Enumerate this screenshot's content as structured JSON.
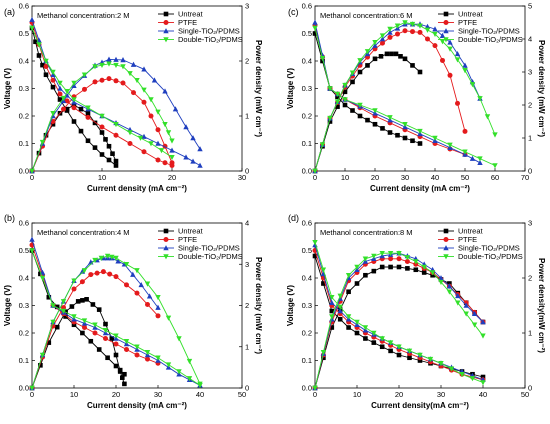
{
  "chart_data": [
    {
      "panel": "(a)",
      "type": "line",
      "annotation": "Methanol concentration:2 M",
      "xlabel": "Current density (mA cm⁻²)",
      "ylabel": "Voltage (V)",
      "y2label": "Power density (mW cm⁻²)",
      "xlim": [
        0,
        30
      ],
      "ylim": [
        0,
        0.6
      ],
      "y2lim": [
        0,
        3
      ],
      "xticks": [
        "0",
        "10",
        "20",
        "30"
      ],
      "yticks": [
        "0.0",
        "0.1",
        "0.2",
        "0.3",
        "0.4",
        "0.5",
        "0.6"
      ],
      "y2ticks": [
        "0",
        "1",
        "2",
        "3"
      ],
      "series": [
        {
          "name": "Untreat",
          "color": "#000000",
          "marker": "square",
          "voltage": {
            "x": [
              0,
              1,
              2,
              4,
              6,
              8,
              10,
              12
            ],
            "y": [
              0.52,
              0.42,
              0.35,
              0.26,
              0.18,
              0.11,
              0.06,
              0.02
            ]
          },
          "power": {
            "x": [
              0,
              2,
              4,
              6,
              8,
              10,
              11,
              12
            ],
            "y": [
              0,
              0.65,
              1.05,
              1.2,
              1.05,
              0.7,
              0.45,
              0.18
            ]
          }
        },
        {
          "name": "PTFE",
          "color": "#e41a1c",
          "marker": "circle",
          "voltage": {
            "x": [
              0,
              2,
              4,
              6,
              10,
              14,
              18,
              20
            ],
            "y": [
              0.54,
              0.38,
              0.28,
              0.23,
              0.16,
              0.1,
              0.04,
              0.02
            ]
          },
          "power": {
            "x": [
              0,
              3,
              6,
              9,
              11,
              13,
              16,
              18,
              20
            ],
            "y": [
              0,
              0.9,
              1.35,
              1.62,
              1.68,
              1.6,
              1.25,
              0.75,
              0.15
            ]
          }
        },
        {
          "name": "Single-TiO₂/PDMS",
          "color": "#1f3fbf",
          "marker": "triangle",
          "voltage": {
            "x": [
              0,
              2,
              4,
              6,
              10,
              14,
              18,
              22,
              24
            ],
            "y": [
              0.55,
              0.4,
              0.3,
              0.25,
              0.2,
              0.15,
              0.1,
              0.05,
              0.02
            ]
          },
          "power": {
            "x": [
              0,
              3,
              6,
              9,
              11,
              13,
              16,
              19,
              22,
              24
            ],
            "y": [
              0,
              1.0,
              1.55,
              1.92,
              2.03,
              2.02,
              1.85,
              1.45,
              0.8,
              0.4
            ]
          }
        },
        {
          "name": "Double-TiO₂/PDMS",
          "color": "#33e02a",
          "marker": "triangle-down",
          "voltage": {
            "x": [
              0,
              2,
              4,
              6,
              10,
              14,
              17,
              20
            ],
            "y": [
              0.52,
              0.4,
              0.32,
              0.26,
              0.2,
              0.14,
              0.1,
              0.05
            ]
          },
          "power": {
            "x": [
              0,
              3,
              6,
              9,
              11,
              13,
              15,
              17,
              19,
              20
            ],
            "y": [
              0,
              1.05,
              1.6,
              1.9,
              1.95,
              1.9,
              1.65,
              1.3,
              0.85,
              0.55
            ]
          }
        }
      ]
    },
    {
      "panel": "(b)",
      "type": "line",
      "annotation": "Methanol concentration:4 M",
      "xlabel": "Current density (mA cm⁻²)",
      "ylabel": "Voltage (V)",
      "y2label": "Power density (mW cm⁻²)",
      "xlim": [
        0,
        50
      ],
      "ylim": [
        0,
        0.6
      ],
      "y2lim": [
        0,
        4
      ],
      "xticks": [
        "0",
        "10",
        "20",
        "30",
        "40",
        "50"
      ],
      "yticks": [
        "0.0",
        "0.1",
        "0.2",
        "0.3",
        "0.4",
        "0.5",
        "0.6"
      ],
      "y2ticks": [
        "0",
        "1",
        "2",
        "3",
        "4"
      ],
      "series": [
        {
          "name": "Untreat",
          "color": "#000000",
          "marker": "square",
          "voltage": {
            "x": [
              0,
              4,
              8,
              12,
              16,
              20,
              22
            ],
            "y": [
              0.5,
              0.33,
              0.26,
              0.2,
              0.14,
              0.08,
              0.05
            ]
          },
          "power": {
            "x": [
              0,
              4,
              8,
              11,
              13,
              16,
              19,
              21,
              22
            ],
            "y": [
              0,
              1.1,
              1.85,
              2.1,
              2.15,
              1.9,
              1.2,
              0.4,
              0.1
            ]
          }
        },
        {
          "name": "PTFE",
          "color": "#e41a1c",
          "marker": "circle",
          "voltage": {
            "x": [
              0,
              5,
              10,
              15,
              20,
              25,
              30
            ],
            "y": [
              0.52,
              0.3,
              0.24,
              0.2,
              0.16,
              0.12,
              0.09
            ]
          },
          "power": {
            "x": [
              0,
              5,
              10,
              14,
              17,
              20,
              25,
              30
            ],
            "y": [
              0,
              1.5,
              2.4,
              2.75,
              2.82,
              2.7,
              2.3,
              1.75
            ]
          }
        },
        {
          "name": "Single-TiO₂/PDMS",
          "color": "#1f3fbf",
          "marker": "triangle",
          "voltage": {
            "x": [
              0,
              5,
              10,
              15,
              20,
              25,
              30,
              35,
              40
            ],
            "y": [
              0.54,
              0.3,
              0.25,
              0.22,
              0.18,
              0.14,
              0.1,
              0.05,
              0.01
            ]
          },
          "power": {
            "x": [
              0,
              5,
              10,
              14,
              17,
              19,
              22,
              26,
              30
            ],
            "y": [
              0,
              1.6,
              2.6,
              3.05,
              3.15,
              3.15,
              3.0,
              2.5,
              1.95
            ]
          }
        },
        {
          "name": "Double-TiO₂/PDMS",
          "color": "#33e02a",
          "marker": "triangle-down",
          "voltage": {
            "x": [
              0,
              5,
              10,
              15,
              20,
              25,
              30,
              35,
              40
            ],
            "y": [
              0.5,
              0.3,
              0.26,
              0.23,
              0.19,
              0.15,
              0.11,
              0.06,
              0.01
            ]
          },
          "power": {
            "x": [
              0,
              5,
              10,
              15,
              18,
              20,
              25,
              30,
              35,
              40
            ],
            "y": [
              0,
              1.6,
              2.6,
              3.1,
              3.2,
              3.15,
              2.85,
              2.2,
              1.2,
              0.1
            ]
          }
        }
      ]
    },
    {
      "panel": "(c)",
      "type": "line",
      "annotation": "Methanol concentration:6 M",
      "xlabel": "Current density (mA cm⁻²)",
      "ylabel": "Voltage (V)",
      "y2label": "Power density (mW cm⁻²)",
      "xlim": [
        0,
        70
      ],
      "ylim": [
        0,
        0.6
      ],
      "y2lim": [
        0,
        5
      ],
      "xticks": [
        "0",
        "10",
        "20",
        "30",
        "40",
        "50",
        "60",
        "70"
      ],
      "yticks": [
        "0.0",
        "0.1",
        "0.2",
        "0.3",
        "0.4",
        "0.5",
        "0.6"
      ],
      "y2ticks": [
        "0",
        "1",
        "2",
        "3",
        "4",
        "5"
      ],
      "series": [
        {
          "name": "Untreat",
          "color": "#000000",
          "marker": "square",
          "voltage": {
            "x": [
              0,
              5,
              10,
              15,
              20,
              25,
              30,
              35
            ],
            "y": [
              0.5,
              0.3,
              0.24,
              0.2,
              0.17,
              0.14,
              0.12,
              0.1
            ]
          },
          "power": {
            "x": [
              0,
              5,
              10,
              15,
              20,
              24,
              27,
              30,
              35
            ],
            "y": [
              0,
              1.5,
              2.4,
              3.0,
              3.4,
              3.55,
              3.55,
              3.4,
              3.0
            ]
          }
        },
        {
          "name": "PTFE",
          "color": "#e41a1c",
          "marker": "circle",
          "voltage": {
            "x": [
              0,
              5,
              10,
              20,
              30,
              40,
              50
            ],
            "y": [
              0.53,
              0.3,
              0.26,
              0.2,
              0.15,
              0.1,
              0.06
            ]
          },
          "power": {
            "x": [
              0,
              5,
              10,
              15,
              20,
              25,
              30,
              35,
              40,
              45,
              50
            ],
            "y": [
              0,
              1.6,
              2.55,
              3.2,
              3.7,
              4.05,
              4.25,
              4.2,
              3.8,
              2.9,
              1.2
            ]
          }
        },
        {
          "name": "Single-TiO₂/PDMS",
          "color": "#1f3fbf",
          "marker": "triangle",
          "voltage": {
            "x": [
              0,
              5,
              10,
              20,
              30,
              40,
              50,
              55
            ],
            "y": [
              0.54,
              0.3,
              0.26,
              0.21,
              0.16,
              0.11,
              0.06,
              0.03
            ]
          },
          "power": {
            "x": [
              0,
              5,
              10,
              15,
              20,
              25,
              30,
              35,
              40,
              45,
              50,
              55
            ],
            "y": [
              0,
              1.6,
              2.6,
              3.3,
              3.8,
              4.2,
              4.45,
              4.45,
              4.3,
              3.9,
              3.2,
              2.2
            ]
          }
        },
        {
          "name": "Double-TiO₂/PDMS",
          "color": "#33e02a",
          "marker": "triangle-down",
          "voltage": {
            "x": [
              0,
              5,
              10,
              20,
              30,
              40,
              50,
              60
            ],
            "y": [
              0.52,
              0.3,
              0.26,
              0.22,
              0.17,
              0.12,
              0.07,
              0.02
            ]
          },
          "power": {
            "x": [
              0,
              5,
              10,
              15,
              20,
              25,
              30,
              35,
              40,
              45,
              50,
              55,
              60
            ],
            "y": [
              0,
              1.6,
              2.6,
              3.35,
              3.9,
              4.3,
              4.5,
              4.4,
              4.15,
              3.7,
              3.05,
              2.2,
              1.1
            ]
          }
        }
      ]
    },
    {
      "panel": "(d)",
      "type": "line",
      "annotation": "Methanol concentration:8 M",
      "xlabel": "Current density(mA cm⁻²)",
      "ylabel": "Voltage (V)",
      "y2label": "Power density(mW cm⁻²)",
      "xlim": [
        0,
        50
      ],
      "ylim": [
        0,
        0.6
      ],
      "y2lim": [
        0,
        3
      ],
      "xticks": [
        "0",
        "10",
        "20",
        "30",
        "40",
        "50"
      ],
      "yticks": [
        "0.0",
        "0.1",
        "0.2",
        "0.3",
        "0.4",
        "0.5",
        "0.6"
      ],
      "y2ticks": [
        "0",
        "1",
        "2",
        "3"
      ],
      "series": [
        {
          "name": "Untreat",
          "color": "#000000",
          "marker": "square",
          "voltage": {
            "x": [
              0,
              4,
              8,
              12,
              16,
              20,
              25,
              30,
              35,
              40
            ],
            "y": [
              0.48,
              0.28,
              0.22,
              0.18,
              0.15,
              0.12,
              0.1,
              0.08,
              0.06,
              0.04
            ]
          },
          "power": {
            "x": [
              0,
              4,
              8,
              12,
              16,
              20,
              24,
              28,
              32,
              36,
              40
            ],
            "y": [
              0,
              1.1,
              1.75,
              2.05,
              2.2,
              2.2,
              2.15,
              2.05,
              1.9,
              1.55,
              1.2
            ]
          }
        },
        {
          "name": "PTFE",
          "color": "#e41a1c",
          "marker": "circle",
          "voltage": {
            "x": [
              0,
              4,
              8,
              12,
              16,
              20,
              25,
              30,
              35,
              40
            ],
            "y": [
              0.5,
              0.3,
              0.24,
              0.2,
              0.17,
              0.14,
              0.11,
              0.08,
              0.05,
              0.03
            ]
          },
          "power": {
            "x": [
              0,
              4,
              8,
              12,
              16,
              20,
              24,
              28,
              32,
              36,
              40
            ],
            "y": [
              0,
              1.2,
              1.95,
              2.25,
              2.35,
              2.35,
              2.25,
              2.1,
              1.85,
              1.55,
              1.2
            ]
          }
        },
        {
          "name": "Single-TiO₂/PDMS",
          "color": "#1f3fbf",
          "marker": "triangle",
          "voltage": {
            "x": [
              0,
              4,
              8,
              12,
              16,
              20,
              25,
              30,
              35,
              40
            ],
            "y": [
              0.52,
              0.31,
              0.25,
              0.21,
              0.18,
              0.15,
              0.12,
              0.09,
              0.06,
              0.03
            ]
          },
          "power": {
            "x": [
              0,
              4,
              8,
              12,
              16,
              20,
              24,
              28,
              32,
              36,
              40
            ],
            "y": [
              0,
              1.25,
              2.0,
              2.3,
              2.4,
              2.45,
              2.35,
              2.15,
              1.85,
              1.5,
              1.2
            ]
          }
        },
        {
          "name": "Double-TiO₂/PDMS",
          "color": "#33e02a",
          "marker": "triangle-down",
          "voltage": {
            "x": [
              0,
              4,
              8,
              12,
              16,
              20,
              25,
              30,
              35,
              40
            ],
            "y": [
              0.53,
              0.33,
              0.26,
              0.22,
              0.18,
              0.15,
              0.12,
              0.09,
              0.05,
              0.02
            ]
          },
          "power": {
            "x": [
              0,
              4,
              8,
              12,
              16,
              20,
              24,
              28,
              32,
              36,
              40
            ],
            "y": [
              0,
              1.3,
              2.05,
              2.35,
              2.45,
              2.45,
              2.3,
              2.1,
              1.75,
              1.35,
              0.95
            ]
          }
        }
      ]
    }
  ]
}
